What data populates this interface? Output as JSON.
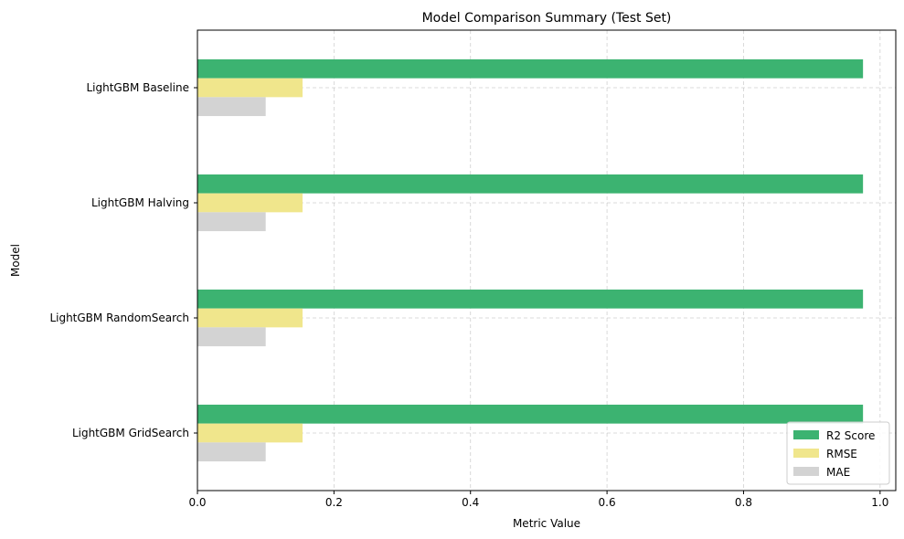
{
  "chart_data": {
    "type": "bar",
    "orientation": "horizontal",
    "title": "Model Comparison Summary (Test Set)",
    "xlabel": "Metric Value",
    "ylabel": "Model",
    "xlim": [
      0,
      1.023
    ],
    "xticks": [
      0.0,
      0.2,
      0.4,
      0.6,
      0.8,
      1.0
    ],
    "xtick_labels": [
      "0.0",
      "0.2",
      "0.4",
      "0.6",
      "0.8",
      "1.0"
    ],
    "grid": true,
    "legend_position": "lower-right",
    "categories": [
      "LightGBM GridSearch",
      "LightGBM RandomSearch",
      "LightGBM Halving",
      "LightGBM Baseline"
    ],
    "series": [
      {
        "name": "R2 Score",
        "color": "#3cb371",
        "values": [
          0.975,
          0.975,
          0.975,
          0.975
        ]
      },
      {
        "name": "RMSE",
        "color": "#f0e68c",
        "values": [
          0.154,
          0.154,
          0.154,
          0.154
        ]
      },
      {
        "name": "MAE",
        "color": "#d3d3d3",
        "values": [
          0.1,
          0.1,
          0.1,
          0.1
        ]
      }
    ]
  }
}
